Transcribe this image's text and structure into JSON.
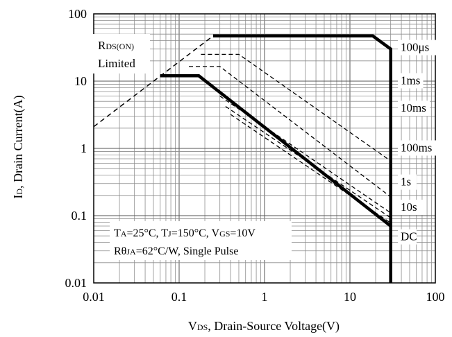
{
  "chart_data": {
    "type": "line",
    "x_scale": "log",
    "y_scale": "log",
    "xlim": [
      0.01,
      100
    ],
    "ylim": [
      0.01,
      100
    ],
    "grid": true,
    "x_ticks": [
      "0.01",
      "0.1",
      "1",
      "10",
      "100"
    ],
    "y_ticks": [
      "0.01",
      "0.1",
      "1",
      "10",
      "100"
    ],
    "xlabel": {
      "main": "V",
      "sub": "DS",
      "rest": ", Drain-Source Voltage(V)"
    },
    "ylabel": {
      "main": "I",
      "sub": "D",
      "rest": ", Drain Current(A)"
    },
    "rds_label": {
      "main": "R",
      "sub": "DS(ON)",
      "line2": "Limited"
    },
    "conditions": {
      "line1": [
        {
          "t": "T",
          "sub": false
        },
        {
          "t": "A",
          "sub": true
        },
        {
          "t": "=25°C, T",
          "sub": false
        },
        {
          "t": "J",
          "sub": true
        },
        {
          "t": "=150°C, V",
          "sub": false
        },
        {
          "t": "GS",
          "sub": true
        },
        {
          "t": "=10V",
          "sub": false
        }
      ],
      "line2": [
        {
          "t": "Rθ",
          "sub": false
        },
        {
          "t": "JA",
          "sub": true
        },
        {
          "t": "=62°C/W, Single Pulse",
          "sub": false
        }
      ]
    },
    "rds_on_limit": {
      "x": [
        0.01,
        0.25
      ],
      "y": [
        2.1,
        47
      ]
    },
    "series": [
      {
        "name": "100μs",
        "style": "solid",
        "x": [
          0.25,
          18.5,
          30,
          30
        ],
        "y": [
          47,
          47,
          30,
          0.01
        ]
      },
      {
        "name": "1ms",
        "style": "dashed",
        "x": [
          0.18,
          0.5,
          30
        ],
        "y": [
          25,
          25,
          0.65
        ]
      },
      {
        "name": "10ms",
        "style": "dashed",
        "x": [
          0.13,
          0.3,
          30
        ],
        "y": [
          16.5,
          16.5,
          0.19
        ]
      },
      {
        "name": "100ms",
        "style": "dashed",
        "x": [
          0.3,
          30
        ],
        "y": [
          6,
          0.11
        ]
      },
      {
        "name": "1s",
        "style": "dashed",
        "x": [
          0.35,
          30
        ],
        "y": [
          4.2,
          0.093
        ]
      },
      {
        "name": "10s",
        "style": "dashed",
        "x": [
          0.4,
          30
        ],
        "y": [
          3.2,
          0.078
        ]
      },
      {
        "name": "DC",
        "style": "solid",
        "x": [
          0.06,
          0.17,
          30
        ],
        "y": [
          12,
          12,
          0.07
        ]
      }
    ],
    "curve_labels": [
      {
        "text": "100μs",
        "y": 28
      },
      {
        "text": "1ms",
        "y": 9
      },
      {
        "text": "10ms",
        "y": 3.5
      },
      {
        "text": "100ms",
        "y": 0.9
      },
      {
        "text": "1s",
        "y": 0.28
      },
      {
        "text": "10s",
        "y": 0.118
      },
      {
        "text": "DC",
        "y": 0.043
      }
    ]
  }
}
